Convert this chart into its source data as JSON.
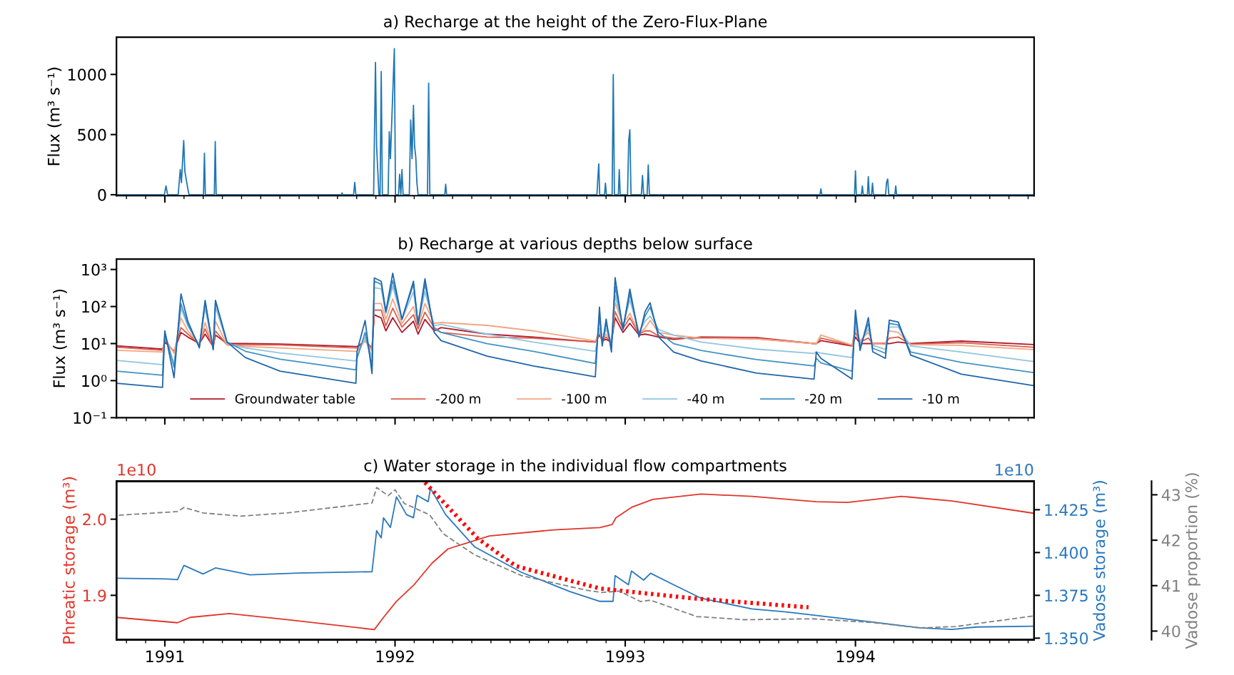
{
  "chart_data": [
    {
      "type": "line",
      "title": "a) Recharge at the height of the Zero-Flux-Plane",
      "ylabel": "Flux (m³ s⁻¹)",
      "xlim": [
        1990.79,
        1994.776
      ],
      "xticks": [
        1991,
        1992,
        1993,
        1994
      ],
      "ylim": [
        -8,
        1310
      ],
      "yticks": [
        0,
        500,
        1000
      ],
      "tick_labels": "y",
      "series": [
        {
          "color": "#1f77b4",
          "x": [
            1990.79,
            1990.998,
            1991.005,
            1991.012,
            1991.058,
            1991.067,
            1991.072,
            1991.082,
            1991.087,
            1991.1,
            1991.105,
            1991.168,
            1991.172,
            1991.176,
            1991.215,
            1991.219,
            1991.223,
            1991.766,
            1991.77,
            1991.774,
            1991.82,
            1991.825,
            1991.83,
            1991.907,
            1991.915,
            1991.92,
            1991.93,
            1991.935,
            1991.94,
            1991.945,
            1991.97,
            1991.975,
            1991.98,
            1991.997,
            1992.002,
            1992.015,
            1992.02,
            1992.025,
            1992.03,
            1992.035,
            1992.062,
            1992.068,
            1992.074,
            1992.08,
            1992.085,
            1992.09,
            1992.095,
            1992.1,
            1992.141,
            1992.146,
            1992.151,
            1992.216,
            1992.22,
            1992.224,
            1992.877,
            1992.881,
            1992.885,
            1992.889,
            1992.91,
            1992.914,
            1992.918,
            1992.943,
            1992.948,
            1992.953,
            1992.97,
            1992.974,
            1992.978,
            1993.01,
            1993.015,
            1993.02,
            1993.025,
            1993.07,
            1993.075,
            1993.08,
            1993.095,
            1993.1,
            1993.105,
            1993.846,
            1993.85,
            1993.854,
            1993.996,
            1994.0,
            1994.004,
            1994.026,
            1994.03,
            1994.034,
            1994.052,
            1994.056,
            1994.06,
            1994.07,
            1994.074,
            1994.078,
            1994.131,
            1994.135,
            1994.14,
            1994.145,
            1994.171,
            1994.175,
            1994.179,
            1994.77
          ],
          "values": [
            0,
            0,
            73,
            0,
            0,
            209,
            100,
            451,
            194,
            49,
            0,
            0,
            345,
            0,
            0,
            442,
            0,
            0,
            15,
            0,
            0,
            102,
            0,
            0,
            1100,
            400,
            0,
            0,
            1024,
            0,
            0,
            524,
            300,
            1214,
            0,
            0,
            170,
            0,
            209,
            0,
            0,
            621,
            300,
            743,
            400,
            315,
            100,
            0,
            0,
            927,
            0,
            0,
            87,
            0,
            0,
            136,
            257,
            0,
            0,
            97,
            0,
            0,
            1000,
            0,
            0,
            209,
            0,
            0,
            451,
            539,
            0,
            0,
            160,
            0,
            0,
            248,
            0,
            0,
            49,
            0,
            0,
            199,
            0,
            0,
            73,
            0,
            0,
            150,
            0,
            0,
            97,
            0,
            0,
            102,
            131,
            0,
            0,
            73,
            0,
            0
          ]
        }
      ]
    },
    {
      "type": "line",
      "title": "b) Recharge at various depths below surface",
      "ylabel": "Flux (m³ s⁻¹)",
      "log": "y",
      "xlim": [
        1990.79,
        1994.776
      ],
      "xticks": [
        1991,
        1992,
        1993,
        1994
      ],
      "ylim": [
        0.1,
        1900
      ],
      "yticks": [
        {
          "value": 0.1,
          "label": "10⁻¹"
        },
        {
          "value": 1,
          "label": "10⁰"
        },
        {
          "value": 10,
          "label": "10¹"
        },
        {
          "value": 100,
          "label": "10²"
        },
        {
          "value": 1000,
          "label": "10³"
        }
      ],
      "tick_labels": "y",
      "legend": "bottom",
      "x": [
        1990.79,
        1990.99,
        1991.0,
        1991.04,
        1991.07,
        1991.1,
        1991.15,
        1991.175,
        1991.21,
        1991.22,
        1991.27,
        1991.35,
        1991.5,
        1991.83,
        1991.835,
        1991.87,
        1991.9,
        1991.91,
        1991.94,
        1991.96,
        1991.99,
        1992.03,
        1992.08,
        1992.1,
        1992.13,
        1992.17,
        1992.2,
        1992.4,
        1992.6,
        1992.87,
        1992.888,
        1992.9,
        1992.917,
        1992.94,
        1992.956,
        1992.99,
        1993.02,
        1993.06,
        1993.086,
        1993.108,
        1993.145,
        1993.21,
        1993.33,
        1993.57,
        1993.82,
        1993.83,
        1993.85,
        1993.985,
        1994.0,
        1994.02,
        1994.056,
        1994.075,
        1994.13,
        1994.147,
        1994.186,
        1994.24,
        1994.46,
        1994.77
      ],
      "series": [
        {
          "name": "Groundwater table",
          "color": "#b2182b",
          "values": [
            8.7,
            7.1,
            11,
            6.2,
            20,
            15,
            10,
            18,
            8.3,
            17,
            10,
            10,
            9.7,
            8.3,
            8.3,
            11.7,
            7.6,
            60,
            49,
            22,
            50,
            20,
            40,
            18,
            45,
            22,
            27,
            18,
            15,
            11,
            17,
            12,
            13,
            11,
            50,
            20,
            35,
            17,
            18,
            17,
            15,
            13,
            15,
            14.5,
            10,
            10,
            12,
            8.6,
            15,
            10,
            10,
            10,
            10,
            10,
            11,
            10,
            11.7,
            9.4
          ]
        },
        {
          "name": "-200 m",
          "color": "#d6604d",
          "values": [
            8.0,
            6.6,
            12,
            6.0,
            27,
            18,
            10,
            25,
            8.1,
            22,
            9.2,
            9.2,
            9.2,
            7.6,
            7.6,
            12,
            7.2,
            81,
            80,
            30,
            90,
            28,
            60,
            25,
            70,
            27,
            20,
            15,
            14,
            11,
            20,
            12,
            15,
            11,
            73,
            25,
            50,
            18,
            22,
            22,
            16,
            14,
            14,
            13.5,
            10,
            10,
            14,
            9,
            20,
            11,
            14,
            10,
            10,
            14,
            15,
            9.6,
            10.5,
            8
          ]
        },
        {
          "name": "-100 m",
          "color": "#f4a582",
          "values": [
            6.6,
            5.9,
            14,
            5.5,
            49,
            22,
            9.6,
            37,
            8,
            40,
            9.2,
            8.3,
            7.6,
            6.2,
            6.2,
            12,
            6.2,
            120,
            120,
            45,
            160,
            35,
            100,
            30,
            120,
            35,
            37,
            31,
            22,
            11.7,
            22,
            12,
            18,
            11,
            127,
            32,
            66,
            19,
            26,
            42,
            20,
            17,
            14,
            13.6,
            10,
            10,
            17,
            9.1,
            26,
            12,
            20,
            10,
            9.5,
            22,
            20,
            9.4,
            8.9,
            6.9
          ]
        },
        {
          "name": "-40 m",
          "color": "#92c5de",
          "values": [
            3.5,
            2.7,
            18,
            2.8,
            90,
            30,
            9.2,
            90,
            7.6,
            98,
            10,
            7.6,
            5.6,
            3.4,
            4.5,
            15,
            4.2,
            324,
            300,
            65,
            350,
            45,
            250,
            35,
            250,
            30,
            33,
            18,
            11,
            6.2,
            26,
            11,
            25,
            10,
            200,
            29,
            150,
            20,
            40,
            55,
            24,
            17,
            11,
            7.1,
            5.4,
            6,
            5.5,
            4.2,
            31,
            10,
            25,
            9,
            7,
            28,
            28,
            8.6,
            5.9,
            3.3
          ]
        },
        {
          "name": "-20 m",
          "color": "#4393c3",
          "values": [
            1.8,
            1.4,
            20,
            2.3,
            120,
            33,
            8.3,
            130,
            7.1,
            140,
            11,
            6.2,
            3.8,
            1.95,
            4,
            20,
            2.5,
            480,
            400,
            70,
            500,
            45,
            400,
            33,
            400,
            25,
            20,
            10,
            6.2,
            2.9,
            55,
            10,
            35,
            8.6,
            355,
            26,
            220,
            18,
            55,
            96,
            20,
            10,
            6.5,
            3.7,
            2.5,
            4,
            3,
            1.8,
            50,
            8,
            35,
            7.5,
            5.5,
            35,
            32,
            5.9,
            3.1,
            1.66
          ]
        },
        {
          "name": "-10 m",
          "color": "#2166ac",
          "values": [
            0.85,
            0.66,
            22,
            1.2,
            218,
            40,
            7.6,
            147,
            6.8,
            147,
            11,
            4.2,
            1.8,
            0.85,
            6.2,
            42,
            1.55,
            590,
            480,
            74,
            790,
            45,
            480,
            33,
            560,
            20,
            12,
            4.6,
            2.5,
            1.27,
            96,
            8.6,
            46,
            5.9,
            600,
            24,
            295,
            15,
            73,
            127,
            15,
            5.9,
            3.4,
            1.6,
            1.1,
            5.9,
            4,
            1.1,
            80,
            6.5,
            50,
            6,
            4,
            43,
            38,
            4.9,
            1.5,
            0.74
          ]
        }
      ]
    },
    {
      "type": "line",
      "title": "c) Water storage in the individual flow compartments",
      "ylabel": "Phreatic storage (m³)",
      "y2label": "Vadose storage (m³)",
      "y3label": "Vadose proportion (%)",
      "xlim": [
        1990.79,
        1994.776
      ],
      "xticks": [
        1991,
        1992,
        1993,
        1994
      ],
      "ylim": [
        1.8417,
        2.05
      ],
      "yticks": [
        1.9,
        {
          "value": 2.0,
          "label": "2.0"
        }
      ],
      "y2lim": [
        1.3491,
        1.4417
      ],
      "y2ticks": [
        {
          "value": 1.35,
          "label": "1.350"
        },
        1.375,
        {
          "value": 1.4,
          "label": "1.400"
        },
        1.425
      ],
      "y3lim": [
        39.81,
        43.3
      ],
      "y3ticks": [
        40,
        41,
        42,
        43
      ],
      "annotations": [
        "1e10",
        "1e10"
      ],
      "series": [
        {
          "color": "#e0352b",
          "axis": "y",
          "x": [
            1990.79,
            1991.055,
            1991.11,
            1991.28,
            1991.53,
            1991.91,
            1991.95,
            1992.006,
            1992.08,
            1992.16,
            1992.23,
            1992.41,
            1992.69,
            1992.89,
            1992.943,
            1992.96,
            1993.03,
            1993.12,
            1993.33,
            1993.55,
            1993.83,
            1993.965,
            1994.2,
            1994.42,
            1994.77
          ],
          "values": [
            1.871,
            1.864,
            1.871,
            1.876,
            1.868,
            1.855,
            1.871,
            1.892,
            1.913,
            1.942,
            1.961,
            1.978,
            1.986,
            1.989,
            1.993,
            2.002,
            2.016,
            2.026,
            2.033,
            2.03,
            2.023,
            2.022,
            2.03,
            2.024,
            2.008
          ]
        },
        {
          "color": "#2a78bd",
          "axis": "y2",
          "x": [
            1990.79,
            1991.007,
            1991.055,
            1991.083,
            1991.166,
            1991.22,
            1991.37,
            1991.58,
            1991.9,
            1991.92,
            1991.94,
            1991.95,
            1991.98,
            1992.006,
            1992.05,
            1992.08,
            1992.096,
            1992.144,
            1992.154,
            1992.22,
            1992.345,
            1992.55,
            1992.76,
            1992.89,
            1992.947,
            1992.956,
            1993.014,
            1993.027,
            1993.08,
            1993.11,
            1993.21,
            1993.33,
            1993.55,
            1993.7,
            1994.07,
            1994.28,
            1994.42,
            1994.525,
            1994.77
          ],
          "values": [
            1.385,
            1.3846,
            1.3842,
            1.3925,
            1.3875,
            1.391,
            1.387,
            1.388,
            1.3888,
            1.4128,
            1.4086,
            1.4203,
            1.4147,
            1.4325,
            1.4221,
            1.4203,
            1.4334,
            1.4297,
            1.4375,
            1.4221,
            1.4034,
            1.3884,
            1.3772,
            1.3715,
            1.3715,
            1.3865,
            1.3812,
            1.3892,
            1.3839,
            1.3879,
            1.3812,
            1.3733,
            1.3671,
            1.3653,
            1.3595,
            1.356,
            1.3551,
            1.3565,
            1.357
          ]
        },
        {
          "color": "#808080",
          "axis": "y3",
          "line_style": "dashed",
          "x": [
            1990.8,
            1991.055,
            1991.083,
            1991.166,
            1991.33,
            1991.53,
            1991.9,
            1991.92,
            1991.97,
            1992.0,
            1992.04,
            1992.15,
            1992.21,
            1992.345,
            1992.55,
            1992.83,
            1992.897,
            1992.975,
            1993.066,
            1993.11,
            1993.31,
            1993.52,
            1993.81,
            1994.07,
            1994.28,
            1994.435,
            1994.77
          ],
          "values": [
            42.55,
            42.63,
            42.72,
            42.6,
            42.53,
            42.6,
            42.82,
            43.16,
            42.98,
            43.11,
            42.81,
            42.56,
            42.14,
            41.68,
            41.22,
            40.9,
            40.85,
            40.88,
            40.65,
            40.68,
            40.32,
            40.25,
            40.27,
            40.19,
            40.07,
            40.1,
            40.33
          ]
        },
        {
          "color": "#ff0000",
          "axis": "y2",
          "line_style": "dotted",
          "x": [
            1992.13,
            1992.36,
            1992.525,
            1992.89,
            1993.29,
            1993.796
          ],
          "values": [
            1.4409,
            1.4081,
            1.3921,
            1.379,
            1.3733,
            1.368
          ]
        }
      ]
    }
  ]
}
